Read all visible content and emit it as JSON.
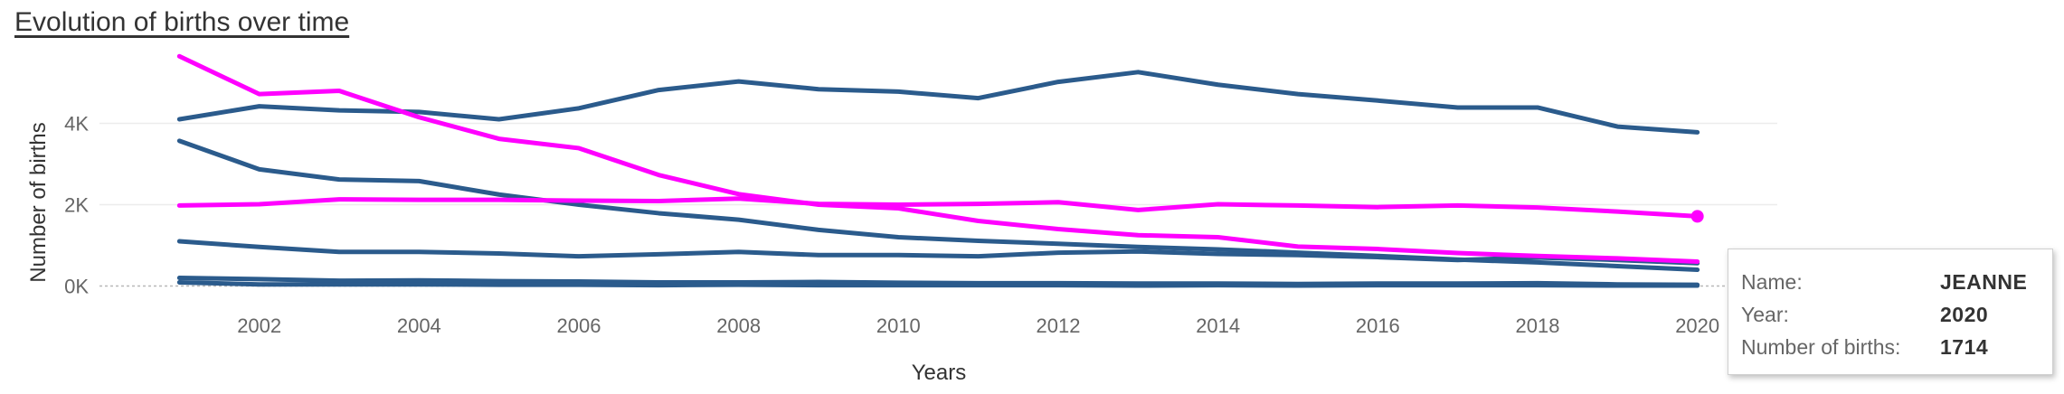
{
  "title": "Evolution of births over time",
  "tooltip": {
    "name_label": "Name:",
    "name_value": "JEANNE",
    "year_label": "Year:",
    "year_value": "2020",
    "births_label": "Number of births:",
    "births_value": "1714"
  },
  "chart_data": {
    "type": "line",
    "xlabel": "Years",
    "ylabel": "Number of births",
    "xlim": [
      2000,
      2021
    ],
    "ylim": [
      -300,
      5700
    ],
    "x_ticks": [
      2002,
      2004,
      2006,
      2008,
      2010,
      2012,
      2014,
      2016,
      2018,
      2020
    ],
    "y_ticks": [
      0,
      2000,
      4000
    ],
    "y_tick_labels": [
      "0K",
      "2K",
      "4K"
    ],
    "grid": "horizontal",
    "x": [
      2001,
      2002,
      2003,
      2004,
      2005,
      2006,
      2007,
      2008,
      2009,
      2010,
      2011,
      2012,
      2013,
      2014,
      2015,
      2016,
      2017,
      2018,
      2019,
      2020
    ],
    "highlight_point": {
      "x": 2020,
      "y": 1714
    },
    "series": [
      {
        "color": "#2b5b8c",
        "values": [
          4100,
          4420,
          4320,
          4280,
          4100,
          4370,
          4820,
          5030,
          4840,
          4780,
          4620,
          5020,
          5260,
          4950,
          4720,
          4560,
          4390,
          4390,
          3920,
          3780
        ]
      },
      {
        "color": "#2b5b8c",
        "values": [
          3570,
          2870,
          2620,
          2580,
          2250,
          2000,
          1790,
          1630,
          1380,
          1200,
          1110,
          1040,
          960,
          900,
          820,
          740,
          650,
          580,
          490,
          400
        ]
      },
      {
        "color": "#2b5b8c",
        "values": [
          1100,
          960,
          840,
          840,
          800,
          730,
          780,
          840,
          760,
          760,
          730,
          820,
          850,
          790,
          760,
          710,
          640,
          700,
          640,
          560
        ]
      },
      {
        "color": "#2b5b8c",
        "values": [
          200,
          170,
          130,
          140,
          120,
          110,
          90,
          90,
          100,
          80,
          70,
          70,
          60,
          60,
          50,
          60,
          60,
          70,
          40,
          30
        ]
      },
      {
        "color": "#2b5b8c",
        "values": [
          90,
          40,
          40,
          40,
          30,
          30,
          20,
          30,
          20,
          20,
          20,
          20,
          10,
          20,
          10,
          20,
          20,
          20,
          10,
          10
        ]
      },
      {
        "color": "#ff00ff",
        "values": [
          5650,
          4720,
          4800,
          4150,
          3620,
          3390,
          2730,
          2260,
          2000,
          1910,
          1600,
          1400,
          1250,
          1200,
          970,
          910,
          810,
          740,
          680,
          600
        ]
      },
      {
        "color": "#ff00ff",
        "values": [
          1980,
          2010,
          2130,
          2120,
          2120,
          2100,
          2090,
          2150,
          2020,
          2000,
          2020,
          2060,
          1870,
          2010,
          1980,
          1940,
          1980,
          1930,
          1830,
          1714
        ]
      }
    ]
  }
}
